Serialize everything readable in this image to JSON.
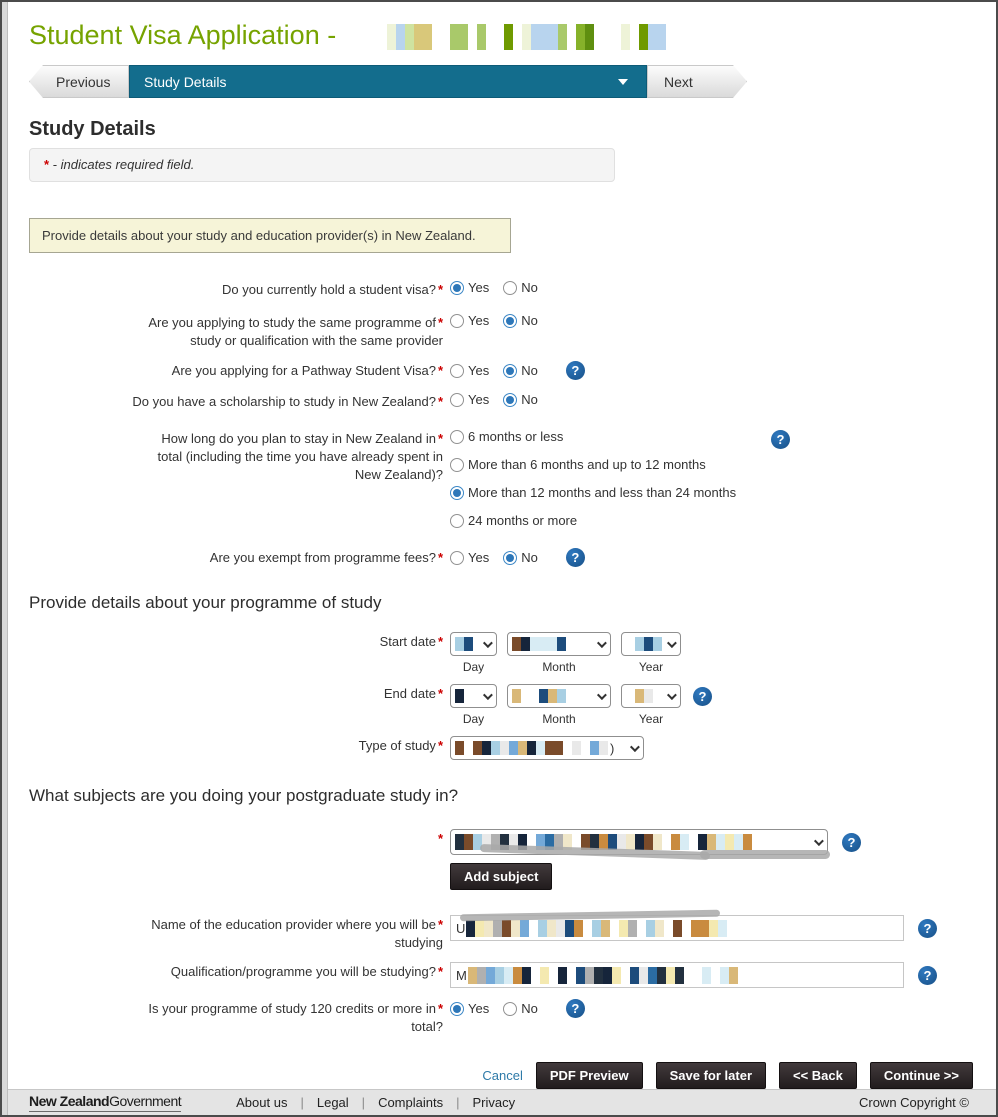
{
  "header": {
    "title_prefix": "Student Visa Application -"
  },
  "nav": {
    "previous_label": "Previous",
    "current_tab": "Study Details",
    "next_label": "Next"
  },
  "page": {
    "heading": "Study Details",
    "required_star": "*",
    "required_note": " - indicates required field.",
    "info_banner": "Provide details about your study and education provider(s) in New Zealand."
  },
  "questions": {
    "student_visa": {
      "label": "Do you currently hold a student visa?",
      "yes": "Yes",
      "no": "No",
      "selected": "Yes"
    },
    "same_programme": {
      "label_line1": "Are you applying to study the same programme of",
      "label_line2": "study or qualification with the same provider",
      "yes": "Yes",
      "no": "No",
      "selected": "No"
    },
    "pathway": {
      "label": "Are you applying for a Pathway Student Visa?",
      "yes": "Yes",
      "no": "No",
      "selected": "No",
      "has_help": true
    },
    "scholarship": {
      "label": "Do you have a scholarship to study in New Zealand?",
      "yes": "Yes",
      "no": "No",
      "selected": "No"
    },
    "stay_length": {
      "label_line1": "How long do you plan to stay in New Zealand in",
      "label_line2": "total (including the time you have already spent in",
      "label_line3": "New Zealand)?",
      "options": [
        "6 months or less",
        "More than 6 months and up to 12 months",
        "More than 12 months and less than 24 months",
        "24 months or more"
      ],
      "selected": "More than 12 months and less than 24 months",
      "has_help": true
    },
    "fees_exempt": {
      "label": "Are you exempt from programme fees?",
      "yes": "Yes",
      "no": "No",
      "selected": "No",
      "has_help": true
    },
    "credits_120": {
      "label_line1": "Is your programme of study 120 credits or more in",
      "label_line2": "total?",
      "yes": "Yes",
      "no": "No",
      "selected": "Yes",
      "has_help": true
    }
  },
  "programme_section": {
    "heading": "Provide details about your programme of study",
    "start_date_label": "Start date",
    "end_date_label": "End date",
    "day_label": "Day",
    "month_label": "Month",
    "year_label": "Year",
    "type_label": "Type of study",
    "type_value_suffix": ")"
  },
  "subjects_section": {
    "heading": "What subjects are you doing your postgraduate study in?",
    "add_subject_label": "Add subject"
  },
  "provider": {
    "label_line1": "Name of the education provider where you will be",
    "label_line2": "studying",
    "value_prefix": "U"
  },
  "qualification": {
    "label": "Qualification/programme you will be studying?",
    "value_prefix": "M"
  },
  "actions": {
    "cancel": "Cancel",
    "pdf_preview": "PDF Preview",
    "save_for_later": "Save for later",
    "back": "<< Back",
    "continue": "Continue >>"
  },
  "footer": {
    "logo_bold": "New Zealand",
    "logo_regular": "Government",
    "links": [
      "About us",
      "Legal",
      "Complaints",
      "Privacy"
    ],
    "copyright": "Crown Copyright ©"
  },
  "colors": {
    "title_green": "#76a300",
    "tab_teal": "#136d8d",
    "help_blue": "#1c5c9e",
    "radio_blue": "#2d77b9",
    "button_dark": "#211c1d",
    "link_blue": "#2e7aa8",
    "required_red": "#cc0000",
    "info_banner_bg": "#f6f4d8",
    "footer_bg": "#e4e4e4"
  }
}
